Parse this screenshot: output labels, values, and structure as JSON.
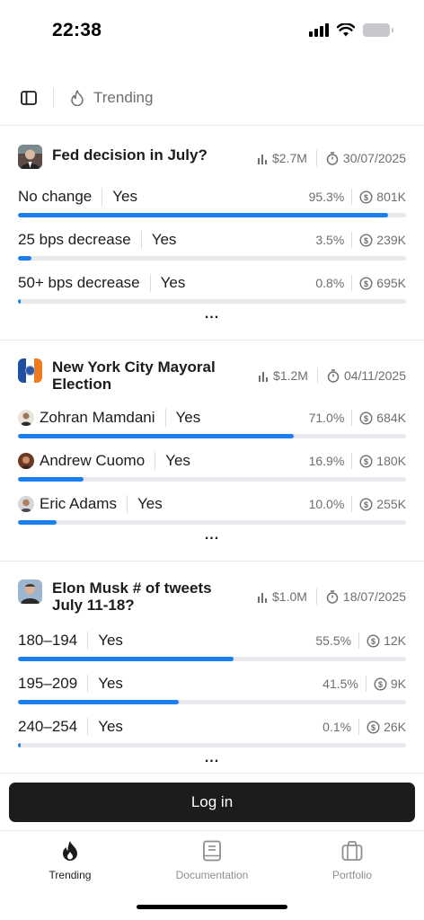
{
  "status_bar": {
    "time": "22:38"
  },
  "topbar": {
    "title": "Trending",
    "sidebar_icon": "sidebar-icon",
    "title_icon": "flame-icon"
  },
  "markets": [
    {
      "title_lines": [
        "Fed decision in July?"
      ],
      "volume": "$2.7M",
      "date": "30/07/2025",
      "outcomes": [
        {
          "label": "No change",
          "side": "Yes",
          "pct": "95.3%",
          "pct_value": 95.3,
          "vol": "801K"
        },
        {
          "label": "25 bps decrease",
          "side": "Yes",
          "pct": "3.5%",
          "pct_value": 3.5,
          "vol": "239K"
        },
        {
          "label": "50+ bps decrease",
          "side": "Yes",
          "pct": "0.8%",
          "pct_value": 0.8,
          "vol": "695K"
        }
      ],
      "more": "..."
    },
    {
      "title_lines": [
        "New York City Mayoral",
        "Election"
      ],
      "volume": "$1.2M",
      "date": "04/11/2025",
      "outcomes": [
        {
          "label": "Zohran Mamdani",
          "side": "Yes",
          "pct": "71.0%",
          "pct_value": 71.0,
          "vol": "684K"
        },
        {
          "label": "Andrew Cuomo",
          "side": "Yes",
          "pct": "16.9%",
          "pct_value": 16.9,
          "vol": "180K"
        },
        {
          "label": "Eric Adams",
          "side": "Yes",
          "pct": "10.0%",
          "pct_value": 10.0,
          "vol": "255K"
        }
      ],
      "more": "..."
    },
    {
      "title_lines": [
        "Elon Musk # of tweets",
        "July 11-18?"
      ],
      "volume": "$1.0M",
      "date": "18/07/2025",
      "outcomes": [
        {
          "label": "180–194",
          "side": "Yes",
          "pct": "55.5%",
          "pct_value": 55.5,
          "vol": "12K"
        },
        {
          "label": "195–209",
          "side": "Yes",
          "pct": "41.5%",
          "pct_value": 41.5,
          "vol": "9K"
        },
        {
          "label": "240–254",
          "side": "Yes",
          "pct": "0.1%",
          "pct_value": 0.1,
          "vol": "26K"
        }
      ],
      "more": "..."
    }
  ],
  "login_label": "Log in",
  "tabs": [
    {
      "label": "Trending",
      "icon": "flame-icon",
      "active": true
    },
    {
      "label": "Documentation",
      "icon": "book-icon",
      "active": false
    },
    {
      "label": "Portfolio",
      "icon": "briefcase-icon",
      "active": false
    }
  ],
  "colors": {
    "accent": "#1b7ff0",
    "track": "#e8e8ed",
    "text": "#1c1c1e",
    "muted": "#6e6e73",
    "button": "#1c1c1e"
  }
}
